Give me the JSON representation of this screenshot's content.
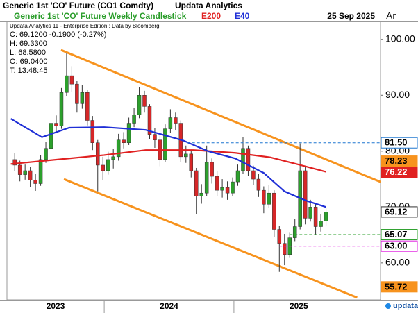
{
  "chart_data": {
    "type": "candlestick",
    "title": "Generic 1st 'CO' Future (CO1 Comdty)",
    "publisher": "Updata Analytics",
    "subtitle": "Generic 1st 'CO' Future Weekly Candlestick",
    "date": "25 Sep 2025",
    "corner_label": "Ar",
    "logo": "updata",
    "info_lines": [
      "Updata Analytics 11 - Enterprise Edition : Data by Bloomberg",
      "C: 69.1200  -0.1900  (-0.27%)",
      "H: 69.3300",
      "L: 68.5800",
      "O: 69.0400",
      "T: 13:48:45"
    ],
    "up_color": "#2ca02c",
    "down_color": "#d62728",
    "x": [
      2023.31,
      2023.35,
      2023.39,
      2023.43,
      2023.47,
      2023.51,
      2023.55,
      2023.59,
      2023.63,
      2023.67,
      2023.71,
      2023.75,
      2023.79,
      2023.83,
      2023.87,
      2023.91,
      2023.95,
      2023.99,
      2024.03,
      2024.07,
      2024.11,
      2024.15,
      2024.19,
      2024.23,
      2024.27,
      2024.31,
      2024.35,
      2024.39,
      2024.43,
      2024.47,
      2024.51,
      2024.55,
      2024.59,
      2024.63,
      2024.67,
      2024.71,
      2024.75,
      2024.79,
      2024.83,
      2024.87,
      2024.91,
      2024.95,
      2024.99,
      2025.03,
      2025.07,
      2025.11,
      2025.15,
      2025.19,
      2025.23,
      2025.27,
      2025.31,
      2025.35,
      2025.39,
      2025.43,
      2025.47,
      2025.51,
      2025.55,
      2025.59,
      2025.63,
      2025.67,
      2025.71
    ],
    "open": [
      78.5,
      77.5,
      75.8,
      76.5,
      74.8,
      74.2,
      78.5,
      80.5,
      85.0,
      84.5,
      90.5,
      93.5,
      92.0,
      88.5,
      90.5,
      85.5,
      81.5,
      77.5,
      76.5,
      78.5,
      79.0,
      82.0,
      81.5,
      85.0,
      86.5,
      90.0,
      88.0,
      83.0,
      82.0,
      78.5,
      84.0,
      86.0,
      85.0,
      79.0,
      79.5,
      76.5,
      72.0,
      72.5,
      78.0,
      75.5,
      73.0,
      73.5,
      72.5,
      74.5,
      76.5,
      80.5,
      76.5,
      75.0,
      73.0,
      70.5,
      72.5,
      66.0,
      63.5,
      61.5,
      64.5,
      66.5,
      76.5,
      68.0,
      70.0,
      66.5,
      67.5
    ],
    "high": [
      79.6,
      78.3,
      77.6,
      77.2,
      76.0,
      79.3,
      81.6,
      86.1,
      86.4,
      91.3,
      97.5,
      95.2,
      92.6,
      91.9,
      91.0,
      86.3,
      82.0,
      79.0,
      79.9,
      80.4,
      83.1,
      83.4,
      86.0,
      87.8,
      91.5,
      90.8,
      88.4,
      84.2,
      82.8,
      84.8,
      87.5,
      86.9,
      85.5,
      81.0,
      80.3,
      77.0,
      74.1,
      81.0,
      78.7,
      76.4,
      75.0,
      74.6,
      75.3,
      77.6,
      82.5,
      81.0,
      77.4,
      75.9,
      73.7,
      73.9,
      73.0,
      66.6,
      65.2,
      65.4,
      67.8,
      81.4,
      77.2,
      71.3,
      70.6,
      68.8,
      69.8
    ],
    "low": [
      76.4,
      74.6,
      74.9,
      73.6,
      72.9,
      73.8,
      77.9,
      80.0,
      83.2,
      84.0,
      89.8,
      90.6,
      86.9,
      87.6,
      84.6,
      80.2,
      72.8,
      74.8,
      75.8,
      76.9,
      78.3,
      80.5,
      81.1,
      84.3,
      85.9,
      86.9,
      82.1,
      80.6,
      77.3,
      78.0,
      83.3,
      83.7,
      78.1,
      77.9,
      75.3,
      68.8,
      70.6,
      72.0,
      74.2,
      71.9,
      71.7,
      71.3,
      72.0,
      73.8,
      76.0,
      75.6,
      74.0,
      71.8,
      68.9,
      69.8,
      64.7,
      58.4,
      59.6,
      60.9,
      63.9,
      66.0,
      66.9,
      67.4,
      65.1,
      65.6,
      66.7
    ],
    "close": [
      77.5,
      75.8,
      76.5,
      74.8,
      74.2,
      78.5,
      80.5,
      85.0,
      84.5,
      90.5,
      93.5,
      92.0,
      88.5,
      90.5,
      85.5,
      81.5,
      77.5,
      76.5,
      78.5,
      79.0,
      82.0,
      81.5,
      85.0,
      86.5,
      90.0,
      88.0,
      83.0,
      82.0,
      78.5,
      84.0,
      86.0,
      85.0,
      79.0,
      79.5,
      76.5,
      72.0,
      72.5,
      78.0,
      75.5,
      73.0,
      73.5,
      72.5,
      74.5,
      76.5,
      80.5,
      76.5,
      75.0,
      73.0,
      70.5,
      72.5,
      66.0,
      63.5,
      61.5,
      64.5,
      66.5,
      76.5,
      68.0,
      70.0,
      66.5,
      67.5,
      69.12
    ],
    "series": [
      {
        "name": "E200",
        "color": "#e02020",
        "x": [
          2023.28,
          2023.73,
          2024.0,
          2024.32,
          2024.69,
          2025.01,
          2025.28,
          2025.5,
          2025.71
        ],
        "values": [
          77.7,
          78.7,
          79.3,
          80.2,
          80.2,
          79.7,
          78.9,
          77.6,
          76.3
        ]
      },
      {
        "name": "E40",
        "color": "#1f2fd6",
        "x": [
          2023.28,
          2023.52,
          2023.73,
          2024.0,
          2024.32,
          2024.61,
          2024.8,
          2025.01,
          2025.23,
          2025.39,
          2025.55,
          2025.71
        ],
        "values": [
          85.8,
          82.5,
          84.2,
          84.3,
          83.8,
          81.9,
          80.0,
          78.7,
          76.1,
          72.8,
          71.2,
          70.0
        ]
      }
    ],
    "trendlines": [
      {
        "color": "#f7931e",
        "x": [
          2023.667,
          2026.13
        ],
        "values": [
          98.1,
          74.5
        ]
      },
      {
        "color": "#f7931e",
        "x": [
          2023.689,
          2025.95
        ],
        "values": [
          75.0,
          53.8
        ]
      }
    ],
    "levels": [
      {
        "value": 81.5,
        "label": "81.50",
        "color": "#1f77d0",
        "fill": "#ffffff",
        "text_color": "#000000",
        "from": 2024.64
      },
      {
        "value": 78.23,
        "label": "78.23",
        "color": "#f7931e",
        "fill": "#f7931e",
        "text_color": "#000000"
      },
      {
        "value": 76.22,
        "label": "76.22",
        "color": "#e02020",
        "fill": "#e02020",
        "text_color": "#ffffff"
      },
      {
        "value": 69.12,
        "label": "69.12",
        "color": "#333333",
        "fill": "#ffffff",
        "text_color": "#000000"
      },
      {
        "value": 65.07,
        "label": "65.07",
        "color": "#2ca02c",
        "fill": "#ffffff",
        "text_color": "#000000",
        "from": 2025.43
      },
      {
        "value": 63.0,
        "label": "63.00",
        "color": "#e020e0",
        "fill": "#ffffff",
        "text_color": "#000000",
        "from": 2025.35
      },
      {
        "value": 55.72,
        "label": "55.72",
        "color": "#f7931e",
        "fill": "#f7931e",
        "text_color": "#000000"
      }
    ],
    "xlim": [
      2023.25,
      2026.13
    ],
    "xticks": [
      2023,
      2024,
      2025
    ],
    "ylim": [
      53.4,
      103.2
    ],
    "yticks": [
      {
        "value": 60,
        "label": "60.00"
      },
      {
        "value": 70,
        "label": "70.00"
      },
      {
        "value": 80,
        "label": "80.00"
      },
      {
        "value": 90,
        "label": "90.00"
      },
      {
        "value": 100,
        "label": "100.00"
      }
    ]
  }
}
